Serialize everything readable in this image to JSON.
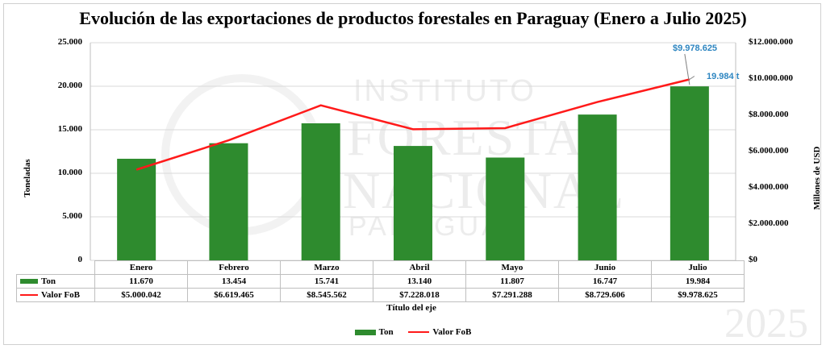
{
  "chart_data": {
    "type": "bar",
    "title": "Evolución de las exportaciones de productos forestales en Paraguay (Enero a Julio 2025)",
    "categories": [
      "Enero",
      "Febrero",
      "Marzo",
      "Abril",
      "Mayo",
      "Junio",
      "Julio"
    ],
    "series": [
      {
        "name": "Ton",
        "type": "bar",
        "axis": "left",
        "color": "#2e8b2e",
        "values": [
          11670,
          13454,
          15741,
          13140,
          11807,
          16747,
          19984
        ],
        "labels": [
          "11.670",
          "13.454",
          "15.741",
          "13.140",
          "11.807",
          "16.747",
          "19.984"
        ]
      },
      {
        "name": "Valor FoB",
        "type": "line",
        "axis": "right",
        "color": "#ff1a1a",
        "values": [
          5000042,
          6619465,
          8545562,
          7228018,
          7291288,
          8729606,
          9978625
        ],
        "labels": [
          "$5.000.042",
          "$6.619.465",
          "$8.545.562",
          "$7.228.018",
          "$7.291.288",
          "$8.729.606",
          "$9.978.625"
        ]
      }
    ],
    "ylabel": "Toneladas",
    "y2label": "Millones de USD",
    "xlabel": "Título del eje",
    "ylim": [
      0,
      25000
    ],
    "y2lim": [
      0,
      12000000
    ],
    "yticks": [
      "0",
      "5.000",
      "10.000",
      "15.000",
      "20.000",
      "25.000"
    ],
    "y2ticks": [
      "$0",
      "$2.000.000",
      "$4.000.000",
      "$6.000.000",
      "$8.000.000",
      "$10.000.000",
      "$12.000.000"
    ],
    "annotations": {
      "last_usd": "$9.978.625",
      "last_ton": "19.984 t",
      "color": "#2e86c1"
    },
    "legend_position": "bottom",
    "data_table": true,
    "grid": true
  },
  "watermark": {
    "line1": "INSTITUTO",
    "line2": "FORESTAL",
    "line3": "NACIONAL",
    "line4": "PARAGUAY",
    "year": "2025"
  }
}
